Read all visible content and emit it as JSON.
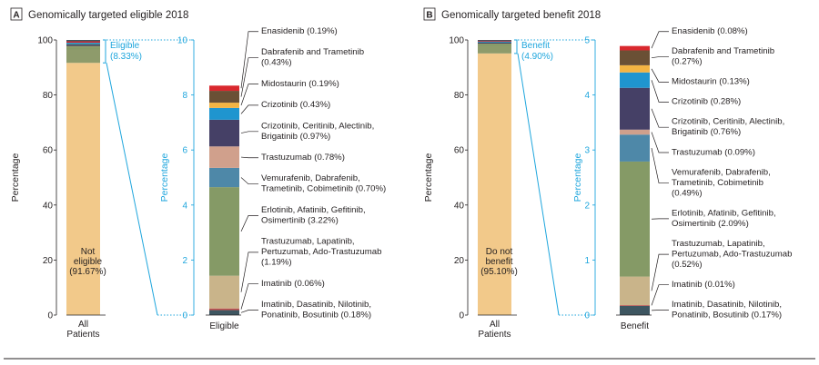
{
  "chart_data": [
    {
      "panel_letter": "A",
      "title": "Genomically targeted eligible 2018",
      "type": "stacked-bar",
      "main_bar": {
        "category": "All Patients",
        "category_lines": [
          "All",
          "Patients"
        ],
        "ylabel": "Percentage",
        "ylim": [
          0,
          100
        ],
        "ticks": [
          "0",
          "20",
          "40",
          "60",
          "80",
          "100"
        ],
        "segments": [
          {
            "name": "Eligible",
            "value": 8.33,
            "color": "#8e9b6b"
          },
          {
            "name": "Not eligible",
            "value": 91.67,
            "color": "#f2c98a"
          }
        ],
        "highlight_label_lines": [
          "Eligible",
          "(8.33%)"
        ],
        "bar_label_lines": [
          "Not",
          "eligible",
          "(91.67%)"
        ]
      },
      "detail_bar": {
        "category": "Eligible",
        "ylabel": "Percentage",
        "ylim": [
          0,
          10
        ],
        "ticks": [
          "0",
          "2",
          "4",
          "6",
          "8",
          "10"
        ],
        "segments": [
          {
            "value": 0.18,
            "color": "#3e5661",
            "label_lines": [
              "Imatinib, Dasatinib, Nilotinib,",
              "Ponatinib, Bosutinib (0.18%)"
            ]
          },
          {
            "value": 0.06,
            "color": "#c0504d",
            "label_lines": [
              "Imatinib (0.06%)"
            ]
          },
          {
            "value": 1.19,
            "color": "#c9b48a",
            "label_lines": [
              "Trastuzumab, Lapatinib,",
              "Pertuzumab, Ado-Trastuzumab",
              "(1.19%)"
            ]
          },
          {
            "value": 3.22,
            "color": "#859a66",
            "label_lines": [
              "Erlotinib, Afatinib, Gefitinib,",
              "Osimertinib (3.22%)"
            ]
          },
          {
            "value": 0.7,
            "color": "#4e88a8",
            "label_lines": [
              "Vemurafenib, Dabrafenib,",
              "Trametinib, Cobimetinib (0.70%)"
            ]
          },
          {
            "value": 0.78,
            "color": "#d0a08c",
            "label_lines": [
              "Trastuzumab (0.78%)"
            ]
          },
          {
            "value": 0.97,
            "color": "#454066",
            "label_lines": [
              "Crizotinib, Ceritinib, Alectinib,",
              "Brigatinib (0.97%)"
            ]
          },
          {
            "value": 0.43,
            "color": "#1f95cf",
            "label_lines": [
              "Crizotinib (0.43%)"
            ]
          },
          {
            "value": 0.19,
            "color": "#f3b443",
            "label_lines": [
              "Midostaurin (0.19%)"
            ]
          },
          {
            "value": 0.43,
            "color": "#6a5035",
            "label_lines": [
              "Dabrafenib and Trametinib",
              "(0.43%)"
            ]
          },
          {
            "value": 0.19,
            "color": "#d9282e",
            "label_lines": [
              "Enasidenib (0.19%)"
            ]
          }
        ]
      }
    },
    {
      "panel_letter": "B",
      "title": "Genomically targeted benefit 2018",
      "type": "stacked-bar",
      "main_bar": {
        "category": "All Patients",
        "category_lines": [
          "All",
          "Patients"
        ],
        "ylabel": "Percentage",
        "ylim": [
          0,
          100
        ],
        "ticks": [
          "0",
          "20",
          "40",
          "60",
          "80",
          "100"
        ],
        "segments": [
          {
            "name": "Benefit",
            "value": 4.9,
            "color": "#8e9b6b"
          },
          {
            "name": "Do not benefit",
            "value": 95.1,
            "color": "#f2c98a"
          }
        ],
        "highlight_label_lines": [
          "Benefit",
          "(4.90%)"
        ],
        "bar_label_lines": [
          "Do not",
          "benefit",
          "(95.10%)"
        ]
      },
      "detail_bar": {
        "category": "Benefit",
        "ylabel": "Percentage",
        "ylim": [
          0,
          5
        ],
        "ticks": [
          "0",
          "1",
          "2",
          "3",
          "4",
          "5"
        ],
        "segments": [
          {
            "value": 0.17,
            "color": "#3e5661",
            "label_lines": [
              "Imatinib, Dasatinib, Nilotinib,",
              "Ponatinib, Bosutinib (0.17%)"
            ]
          },
          {
            "value": 0.01,
            "color": "#c0504d",
            "label_lines": [
              "Imatinib (0.01%)"
            ]
          },
          {
            "value": 0.52,
            "color": "#c9b48a",
            "label_lines": [
              "Trastuzumab, Lapatinib,",
              "Pertuzumab, Ado-Trastuzumab",
              "(0.52%)"
            ]
          },
          {
            "value": 2.09,
            "color": "#859a66",
            "label_lines": [
              "Erlotinib, Afatinib, Gefitinib,",
              "Osimertinib (2.09%)"
            ]
          },
          {
            "value": 0.49,
            "color": "#4e88a8",
            "label_lines": [
              "Vemurafenib, Dabrafenib,",
              "Trametinib, Cobimetinib",
              "(0.49%)"
            ]
          },
          {
            "value": 0.09,
            "color": "#d0a08c",
            "label_lines": [
              "Trastuzumab (0.09%)"
            ]
          },
          {
            "value": 0.76,
            "color": "#454066",
            "label_lines": [
              "Crizotinib, Ceritinib, Alectinib,",
              "Brigatinib (0.76%)"
            ]
          },
          {
            "value": 0.28,
            "color": "#1f95cf",
            "label_lines": [
              "Crizotinib (0.28%)"
            ]
          },
          {
            "value": 0.13,
            "color": "#f3b443",
            "label_lines": [
              "Midostaurin (0.13%)"
            ]
          },
          {
            "value": 0.27,
            "color": "#6a5035",
            "label_lines": [
              "Dabrafenib and Trametinib",
              "(0.27%)"
            ]
          },
          {
            "value": 0.08,
            "color": "#d9282e",
            "label_lines": [
              "Enasidenib (0.08%)"
            ]
          }
        ]
      }
    }
  ],
  "colors": {
    "accent": "#1fa6dd",
    "text": "#231f20",
    "axis": "#231f20"
  }
}
